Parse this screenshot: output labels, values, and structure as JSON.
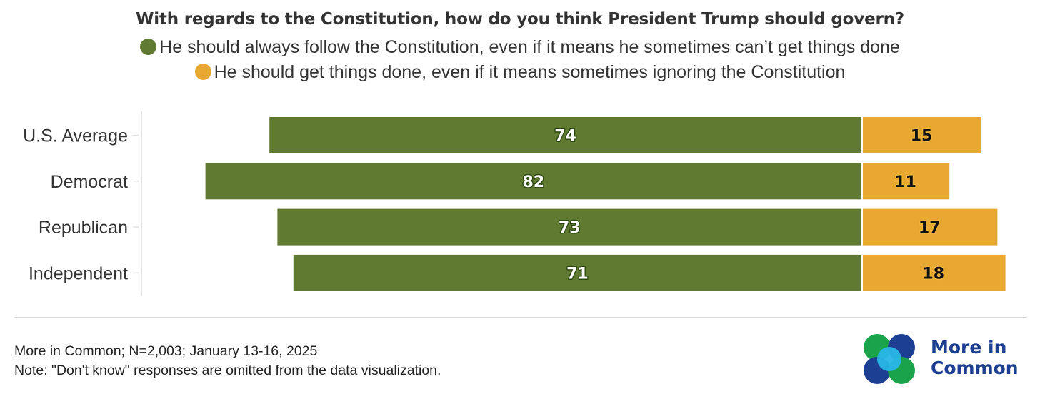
{
  "title": "With regards to the Constitution, how do you think President Trump should govern?",
  "legend": [
    {
      "label": "He should always follow the Constitution, even if it means he sometimes can’t get things done",
      "color": "#617a31"
    },
    {
      "label": "He should get things done, even if it means sometimes ignoring the Constitution",
      "color": "#e8a831"
    }
  ],
  "chart_data": {
    "type": "bar",
    "orientation": "horizontal",
    "layout": "diverging",
    "categories": [
      "U.S. Average",
      "Democrat",
      "Republican",
      "Independent"
    ],
    "series": [
      {
        "name": "He should always follow the Constitution, even if it means he sometimes can’t get things done",
        "values": [
          74,
          82,
          73,
          71
        ],
        "color": "#617a31"
      },
      {
        "name": "He should get things done, even if it means sometimes ignoring the Constitution",
        "values": [
          15,
          11,
          17,
          18
        ],
        "color": "#e8a831"
      }
    ],
    "title": "With regards to the Constitution, how do you think President Trump should govern?",
    "xlabel": "",
    "ylabel": "",
    "grid": false,
    "legend_position": "top"
  },
  "footer": {
    "source": "More in Common; N=2,003; January 13-16, 2025",
    "note": "Note: \"Don't know\" responses are omitted from the data visualization."
  },
  "logo": {
    "line1": "More in",
    "line2": "Common",
    "colors": [
      "#1aa34a",
      "#1d3f91",
      "#29b6e8"
    ]
  }
}
